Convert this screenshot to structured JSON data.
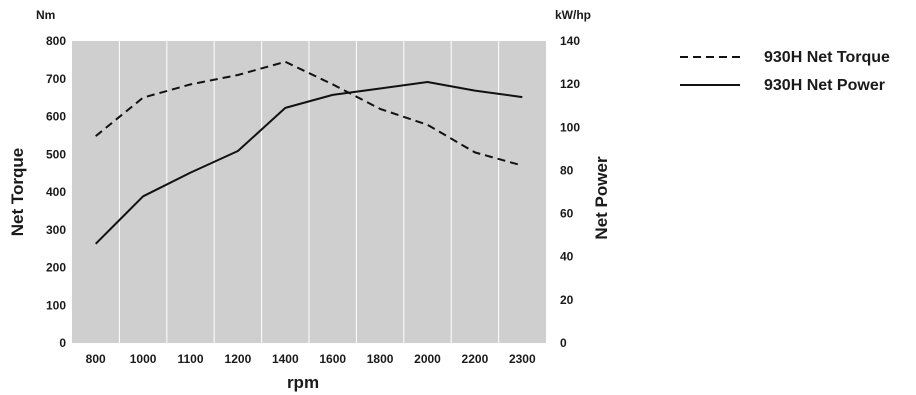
{
  "chart_data": {
    "type": "line",
    "categories": [
      "800",
      "1000",
      "1100",
      "1200",
      "1400",
      "1600",
      "1800",
      "2000",
      "2200",
      "2300"
    ],
    "xlabel": "rpm",
    "y_left": {
      "label": "Net Torque",
      "unit": "Nm",
      "range": [
        0,
        800
      ],
      "ticks": [
        "0",
        "100",
        "200",
        "300",
        "400",
        "500",
        "600",
        "700",
        "800"
      ]
    },
    "y_right": {
      "label": "Net Power",
      "unit": "kW/hp",
      "range": [
        0,
        140
      ],
      "ticks": [
        "0",
        "20",
        "40",
        "60",
        "80",
        "100",
        "120",
        "140"
      ]
    },
    "series": [
      {
        "name": "930H Net Torque",
        "axis": "left",
        "style": "dashed",
        "values": [
          548,
          650,
          685,
          710,
          745,
          685,
          620,
          578,
          505,
          470
        ]
      },
      {
        "name": "930H Net Power",
        "axis": "right",
        "style": "solid",
        "values": [
          46,
          68,
          79,
          89,
          109,
          115,
          118,
          121,
          117,
          114
        ]
      }
    ],
    "grid": "vertical",
    "legend_position": "top-right",
    "colors": {
      "plot_background": "#cfcfcf",
      "grid": "#ffffff",
      "line": "#111111"
    }
  }
}
